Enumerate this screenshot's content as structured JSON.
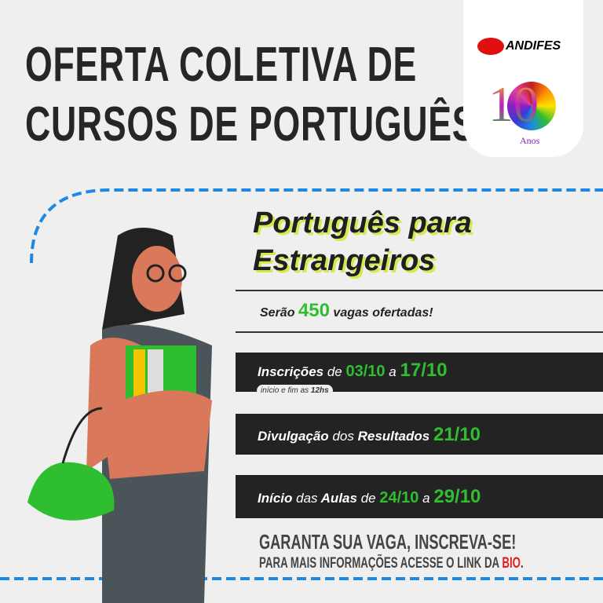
{
  "header": {
    "line1": "OFERTA COLETIVA DE",
    "line2": "CURSOS DE PORTUGUÊS"
  },
  "logos": {
    "andifes": "ANDIFES",
    "anniversary_number": "10",
    "anniversary_word": "Anos"
  },
  "course": {
    "line1": "Português para",
    "line2": "Estrangeiros"
  },
  "vacancies": {
    "prefix": "Serão",
    "count": "450",
    "suffix": "vagas ofertadas!"
  },
  "registration": {
    "label": "Inscrições",
    "de": "de",
    "start": "03/10",
    "a": "a",
    "end": "17/10",
    "note_prefix": "início e fim as",
    "note_time": "12hs"
  },
  "results": {
    "label": "Divulgação",
    "middle": "dos",
    "label2": "Resultados",
    "date": "21/10"
  },
  "classes": {
    "label": "Início",
    "middle": "das",
    "label2": "Aulas",
    "de": "de",
    "start": "24/10",
    "a": "a",
    "end": "29/10"
  },
  "footer": {
    "cta": "GARANTA SUA VAGA, INSCREVA-SE!",
    "info": "PARA MAIS INFORMAÇÕES ACESSE O LINK DA",
    "bio": "BIO",
    "dot": "."
  },
  "colors": {
    "green": "#2fbe2f",
    "dashed": "#1e88e5",
    "dark": "#232323",
    "red": "#e02020"
  }
}
